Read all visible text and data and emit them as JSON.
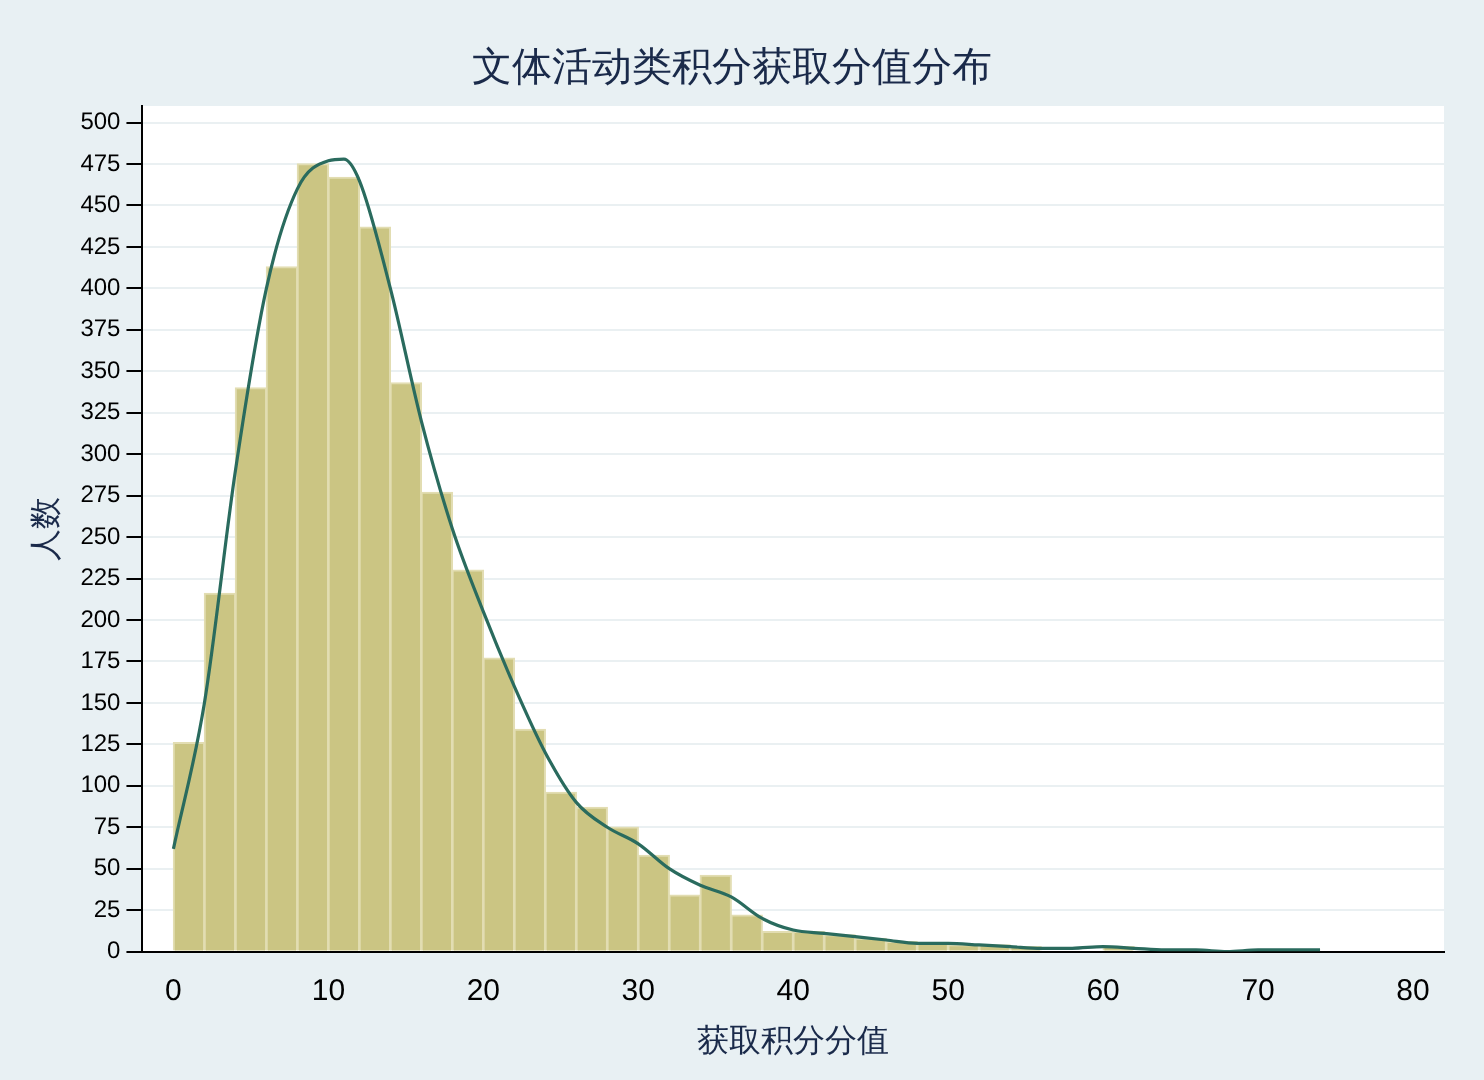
{
  "chart_data": {
    "type": "histogram",
    "title": "文体活动类积分获取分值分布",
    "xlabel": "获取积分分值",
    "ylabel": "人数",
    "bins": [
      0,
      2,
      4,
      6,
      8,
      10,
      12,
      14,
      16,
      18,
      20,
      22,
      24,
      26,
      28,
      30,
      32,
      34,
      36,
      38,
      40,
      42,
      44,
      46,
      48,
      50,
      52,
      54,
      56,
      58,
      60,
      62,
      64,
      66,
      68,
      70,
      72,
      74
    ],
    "values": [
      126,
      216,
      340,
      413,
      475,
      467,
      437,
      343,
      277,
      230,
      177,
      134,
      96,
      87,
      75,
      58,
      34,
      46,
      22,
      12,
      12,
      10,
      8,
      6,
      5,
      4,
      4,
      3,
      null,
      null,
      3,
      null,
      null,
      null,
      0,
      null,
      null
    ],
    "color": "#cbc583",
    "series": [
      {
        "type": "line",
        "color": "#2a6b5e",
        "x": [
          0,
          2,
          4,
          6,
          8,
          10,
          11,
          12,
          14,
          16,
          18,
          20,
          22,
          24,
          26,
          28,
          30,
          32,
          34,
          36,
          38,
          40,
          42,
          44,
          46,
          48,
          50,
          52,
          54,
          56,
          58,
          60,
          62,
          64,
          66,
          68,
          70,
          72,
          74
        ],
        "values": [
          62,
          150,
          290,
          400,
          460,
          477,
          478,
          465,
          400,
          320,
          255,
          205,
          160,
          120,
          90,
          75,
          65,
          50,
          40,
          33,
          20,
          13,
          11,
          9,
          7,
          5,
          5,
          4,
          3,
          2,
          2,
          3,
          2,
          1,
          1,
          0,
          1,
          1,
          1
        ]
      }
    ],
    "xlim": [
      -2,
      82
    ],
    "xticks": [
      0,
      10,
      20,
      30,
      40,
      50,
      60,
      70,
      80
    ],
    "ylim": [
      0,
      510
    ],
    "yticks": [
      0,
      25,
      50,
      75,
      100,
      125,
      150,
      175,
      200,
      225,
      250,
      275,
      300,
      325,
      350,
      375,
      400,
      425,
      450,
      475,
      500
    ],
    "grid": "y",
    "legend": false
  }
}
